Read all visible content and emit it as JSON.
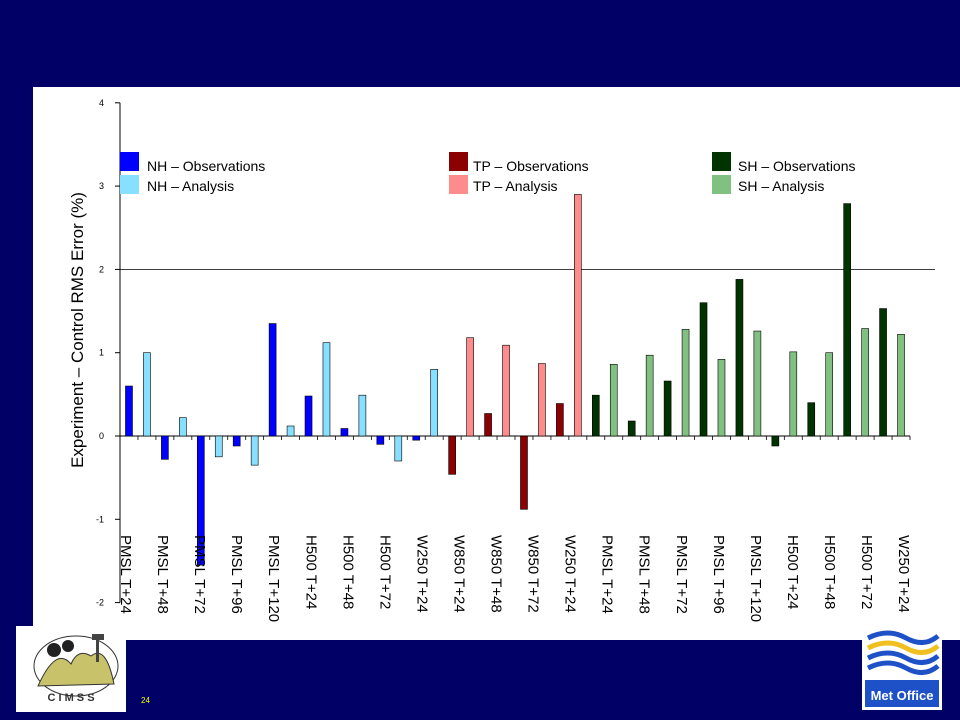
{
  "slide": {
    "number": "24"
  },
  "logos": {
    "cimss_text": "C I M S S",
    "metoffice_text": "Met Office"
  },
  "colors": {
    "background": "#000066",
    "nh_obs": "#0000ff",
    "nh_an": "#87e0ff",
    "tp_obs": "#8b0000",
    "tp_an": "#ff8c8c",
    "sh_obs": "#003300",
    "sh_an": "#80c080"
  },
  "legend": [
    {
      "label": "NH – Observations",
      "color": "#0000ff"
    },
    {
      "label": "NH – Analysis",
      "color": "#87e0ff"
    },
    {
      "label": "TP – Observations",
      "color": "#8b0000"
    },
    {
      "label": "TP – Analysis",
      "color": "#ff8c8c"
    },
    {
      "label": "SH – Observations",
      "color": "#003300"
    },
    {
      "label": "SH – Analysis",
      "color": "#80c080"
    }
  ],
  "chart_data": {
    "type": "bar",
    "ylabel": "Experiment – Control RMS Error (%)",
    "ylim": [
      -2,
      4
    ],
    "yticks": [
      -2,
      -1,
      0,
      1,
      2,
      3,
      4
    ],
    "reference_line": 2,
    "categories": [
      "PMSL T+24",
      "PMSL T+48",
      "PMSL T+72",
      "PMSL T+96",
      "PMSL T+120",
      "H500 T+24",
      "H500 T+48",
      "H500 T+72",
      "W250 T+24",
      "W850 T+24",
      "W850 T+48",
      "W850 T+72",
      "W250 T+24",
      "PMSL T+24",
      "PMSL T+48",
      "PMSL T+72",
      "PMSL T+96",
      "PMSL T+120",
      "H500 T+24",
      "H500 T+48",
      "H500 T+72",
      "W250 T+24"
    ],
    "bars": [
      {
        "region": "NH",
        "series": "Observations",
        "value": 0.6
      },
      {
        "region": "NH",
        "series": "Analysis",
        "value": 1.0
      },
      {
        "region": "NH",
        "series": "Observations",
        "value": -0.28
      },
      {
        "region": "NH",
        "series": "Analysis",
        "value": 0.22
      },
      {
        "region": "NH",
        "series": "Observations",
        "value": -1.55
      },
      {
        "region": "NH",
        "series": "Analysis",
        "value": -0.25
      },
      {
        "region": "NH",
        "series": "Observations",
        "value": -0.12
      },
      {
        "region": "NH",
        "series": "Analysis",
        "value": -0.35
      },
      {
        "region": "NH",
        "series": "Observations",
        "value": 1.35
      },
      {
        "region": "NH",
        "series": "Analysis",
        "value": 0.12
      },
      {
        "region": "NH",
        "series": "Observations",
        "value": 0.48
      },
      {
        "region": "NH",
        "series": "Analysis",
        "value": 1.12
      },
      {
        "region": "NH",
        "series": "Observations",
        "value": 0.09
      },
      {
        "region": "NH",
        "series": "Analysis",
        "value": 0.49
      },
      {
        "region": "NH",
        "series": "Observations",
        "value": -0.1
      },
      {
        "region": "NH",
        "series": "Analysis",
        "value": -0.3
      },
      {
        "region": "NH",
        "series": "Observations",
        "value": -0.05
      },
      {
        "region": "NH",
        "series": "Analysis",
        "value": 0.8
      },
      {
        "region": "TP",
        "series": "Observations",
        "value": -0.46
      },
      {
        "region": "TP",
        "series": "Analysis",
        "value": 1.18
      },
      {
        "region": "TP",
        "series": "Observations",
        "value": 0.27
      },
      {
        "region": "TP",
        "series": "Analysis",
        "value": 1.09
      },
      {
        "region": "TP",
        "series": "Observations",
        "value": -0.88
      },
      {
        "region": "TP",
        "series": "Analysis",
        "value": 0.87
      },
      {
        "region": "TP",
        "series": "Observations",
        "value": 0.39
      },
      {
        "region": "TP",
        "series": "Analysis",
        "value": 2.9
      },
      {
        "region": "SH",
        "series": "Observations",
        "value": 0.49
      },
      {
        "region": "SH",
        "series": "Analysis",
        "value": 0.86
      },
      {
        "region": "SH",
        "series": "Observations",
        "value": 0.18
      },
      {
        "region": "SH",
        "series": "Analysis",
        "value": 0.97
      },
      {
        "region": "SH",
        "series": "Observations",
        "value": 0.66
      },
      {
        "region": "SH",
        "series": "Analysis",
        "value": 1.28
      },
      {
        "region": "SH",
        "series": "Observations",
        "value": 1.6
      },
      {
        "region": "SH",
        "series": "Analysis",
        "value": 0.92
      },
      {
        "region": "SH",
        "series": "Observations",
        "value": 1.88
      },
      {
        "region": "SH",
        "series": "Analysis",
        "value": 1.26
      },
      {
        "region": "SH",
        "series": "Observations",
        "value": -0.12
      },
      {
        "region": "SH",
        "series": "Analysis",
        "value": 1.01
      },
      {
        "region": "SH",
        "series": "Observations",
        "value": 0.4
      },
      {
        "region": "SH",
        "series": "Analysis",
        "value": 1.0
      },
      {
        "region": "SH",
        "series": "Observations",
        "value": 2.79
      },
      {
        "region": "SH",
        "series": "Analysis",
        "value": 1.29
      },
      {
        "region": "SH",
        "series": "Observations",
        "value": 1.53
      },
      {
        "region": "SH",
        "series": "Analysis",
        "value": 1.22
      }
    ]
  }
}
